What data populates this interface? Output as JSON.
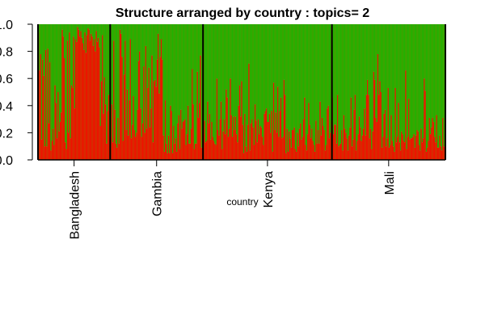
{
  "chart_data": {
    "type": "bar",
    "stacked": true,
    "normalized": true,
    "title": "Structure arranged by country : topics= 2",
    "xlabel": "country",
    "ylabel": "",
    "ylim": [
      0,
      1
    ],
    "y_ticks": [
      {
        "value": 0.0,
        "label": "0.0"
      },
      {
        "value": 0.2,
        "label": "0.2"
      },
      {
        "value": 0.4,
        "label": "0.4"
      },
      {
        "value": 0.6,
        "label": "0.6"
      },
      {
        "value": 0.8,
        "label": "0.8"
      },
      {
        "value": 1.0,
        "label": "1.0"
      }
    ],
    "categories": [
      "Bangladesh",
      "Gambia",
      "Kenya",
      "Mali"
    ],
    "series": [
      {
        "color": "#ff0000"
      },
      {
        "color": "#11bb00"
      }
    ],
    "groups": [
      {
        "category": "Bangladesh",
        "topic1": [
          0.94,
          0.66,
          0.78,
          0.15,
          0.74,
          0.62,
          0.1,
          0.81,
          0.1,
          0.82,
          0.27,
          0.72,
          0.07,
          0.14,
          0.23,
          0.11,
          0.55,
          0.42,
          0.16,
          0.5,
          0.21,
          0.28,
          0.35,
          0.96,
          0.91,
          0.75,
          0.13,
          0.08,
          0.88,
          0.2,
          0.94,
          0.16,
          0.55,
          0.53,
          0.91,
          0.38,
          0.89,
          0.87,
          0.98,
          0.96,
          0.91,
          0.95,
          0.9,
          0.86,
          0.81,
          0.94,
          0.79,
          0.92,
          0.97,
          0.96,
          0.88,
          0.93,
          0.91,
          0.84,
          0.89,
          0.8,
          0.95,
          0.87,
          0.9,
          0.83,
          0.25,
          0.58,
          0.92,
          0.34,
          0.61,
          0.41,
          0.12,
          0.36,
          0.48,
          0.17
        ]
      },
      {
        "category": "Gambia",
        "topic1": [
          0.17,
          0.41,
          0.13,
          0.88,
          0.37,
          0.12,
          0.09,
          0.31,
          0.12,
          0.96,
          0.93,
          0.76,
          0.14,
          0.63,
          0.88,
          0.22,
          0.52,
          0.18,
          0.44,
          0.89,
          0.16,
          0.26,
          0.47,
          0.22,
          0.17,
          0.2,
          0.37,
          0.73,
          0.8,
          0.38,
          0.17,
          0.27,
          0.69,
          0.2,
          0.84,
          0.23,
          0.53,
          0.68,
          0.24,
          0.38,
          0.77,
          0.13,
          0.58,
          0.59,
          0.54,
          0.74,
          0.93,
          0.49,
          0.76,
          0.89,
          0.74,
          0.18,
          0.06,
          0.44,
          0.12,
          0.05,
          0.18,
          0.05,
          0.4,
          0.36,
          0.05,
          0.25,
          0.12,
          0.16,
          0.06,
          0.27,
          0.33,
          0.08,
          0.37,
          0.23,
          0.28,
          0.29,
          0.3,
          0.11,
          0.19,
          0.4,
          0.12,
          0.12,
          0.23,
          0.67,
          0.41,
          0.08,
          0.12,
          0.12,
          0.65,
          0.31,
          0.42,
          0.77,
          0.09,
          0.22
        ]
      },
      {
        "category": "Kenya",
        "topic1": [
          0.19,
          0.29,
          0.13,
          0.14,
          0.43,
          0.27,
          0.34,
          0.15,
          0.28,
          0.17,
          0.14,
          0.12,
          0.11,
          0.6,
          0.22,
          0.18,
          0.3,
          0.43,
          0.08,
          0.21,
          0.3,
          0.19,
          0.52,
          0.46,
          0.17,
          0.23,
          0.6,
          0.33,
          0.17,
          0.32,
          0.22,
          0.32,
          0.19,
          0.13,
          0.4,
          0.55,
          0.32,
          0.58,
          0.26,
          0.05,
          0.34,
          0.1,
          0.06,
          0.26,
          0.71,
          0.07,
          0.27,
          0.3,
          0.24,
          0.11,
          0.41,
          0.29,
          0.13,
          0.3,
          0.19,
          0.25,
          0.24,
          0.17,
          0.11,
          0.34,
          0.36,
          0.38,
          0.28,
          0.28,
          0.34,
          0.2,
          0.36,
          0.06,
          0.57,
          0.22,
          0.35,
          0.2,
          0.54,
          0.17,
          0.36,
          0.46,
          0.16,
          0.17,
          0.59,
          0.48,
          0.05,
          0.23,
          0.06,
          0.21,
          0.16,
          0.09,
          0.22,
          0.22,
          0.24,
          0.08,
          0.06,
          0.2,
          0.1,
          0.23,
          0.27,
          0.15,
          0.17,
          0.3,
          0.46,
          0.11,
          0.07,
          0.19,
          0.42,
          0.26,
          0.16,
          0.23,
          0.14,
          0.11,
          0.06,
          0.29,
          0.12,
          0.22,
          0.12,
          0.43,
          0.18,
          0.31,
          0.25,
          0.22,
          0.07,
          0.11,
          0.38,
          0.4,
          0.16,
          0.2,
          0.29
        ]
      },
      {
        "category": "Mali",
        "topic1": [
          0.46,
          0.19,
          0.26,
          0.26,
          0.12,
          0.48,
          0.1,
          0.11,
          0.12,
          0.22,
          0.07,
          0.33,
          0.23,
          0.2,
          0.16,
          0.07,
          0.18,
          0.24,
          0.46,
          0.1,
          0.15,
          0.37,
          0.48,
          0.07,
          0.14,
          0.19,
          0.32,
          0.24,
          0.14,
          0.18,
          0.23,
          0.38,
          0.18,
          0.48,
          0.59,
          0.48,
          0.16,
          0.23,
          0.08,
          0.21,
          0.65,
          0.59,
          0.31,
          0.28,
          0.78,
          0.48,
          0.58,
          0.5,
          0.09,
          0.17,
          0.34,
          0.37,
          0.1,
          0.16,
          0.53,
          0.09,
          0.11,
          0.33,
          0.14,
          0.1,
          0.06,
          0.53,
          0.13,
          0.17,
          0.42,
          0.13,
          0.07,
          0.21,
          0.19,
          0.14,
          0.13,
          0.66,
          0.08,
          0.17,
          0.45,
          0.15,
          0.16,
          0.16,
          0.17,
          0.19,
          0.09,
          0.18,
          0.22,
          0.21,
          0.11,
          0.07,
          0.23,
          0.13,
          0.16,
          0.6,
          0.51,
          0.06,
          0.09,
          0.14,
          0.31,
          0.19,
          0.24,
          0.31,
          0.28,
          0.17,
          0.13,
          0.33,
          0.09,
          0.09,
          0.18,
          0.1,
          0.07,
          0.31,
          0.1,
          0.15
        ]
      }
    ]
  }
}
